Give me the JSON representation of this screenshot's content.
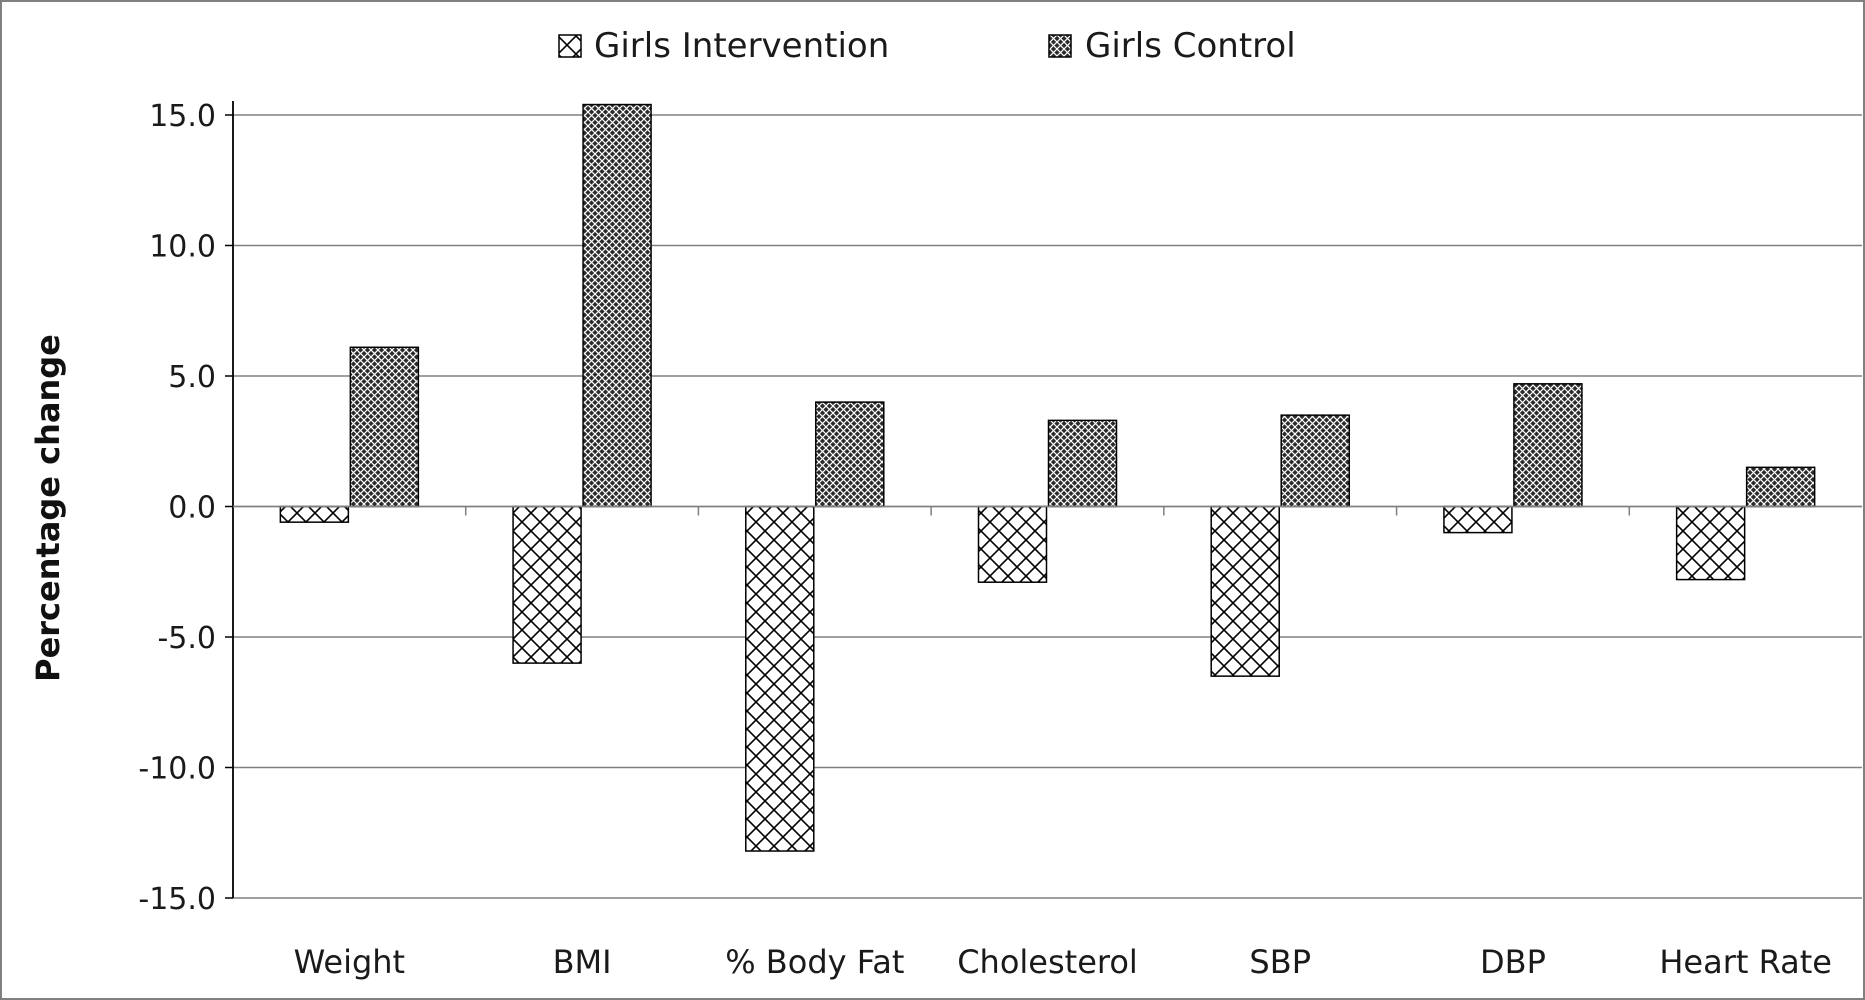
{
  "chart_data": {
    "type": "bar",
    "title": "",
    "xlabel": "",
    "ylabel": "Percentage change",
    "categories": [
      "Weight",
      "BMI",
      "% Body Fat",
      "Cholesterol",
      "SBP",
      "DBP",
      "Heart Rate"
    ],
    "series": [
      {
        "name": "Girls Intervention",
        "pattern": "light-crosshatch",
        "values": [
          -0.6,
          -6.0,
          -13.2,
          -2.9,
          -6.5,
          -1.0,
          -2.8
        ]
      },
      {
        "name": "Girls Control",
        "pattern": "dense-crosshatch",
        "values": [
          6.1,
          15.4,
          4.0,
          3.3,
          3.5,
          4.7,
          1.5
        ]
      }
    ],
    "ylim": [
      -15,
      15
    ],
    "yticks": [
      15,
      10,
      5,
      0,
      -5,
      -10,
      -15
    ],
    "ytick_labels": [
      "15.0",
      "10.0",
      "5.0",
      "0.0",
      "-5.0",
      "-10.0",
      "-15.0"
    ],
    "grid": true,
    "legend_position": "top-center",
    "colors": {
      "stroke": "#000000",
      "grid": "#808080",
      "frame": "#808080",
      "text": "#1a1a1a"
    }
  }
}
